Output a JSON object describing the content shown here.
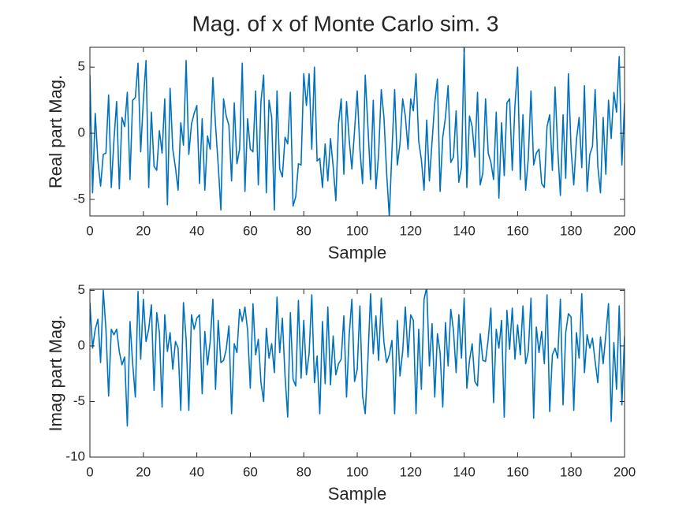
{
  "title": "Mag. of x of Monte Carlo sim. 3",
  "chart_data": [
    {
      "type": "line",
      "xlabel": "Sample",
      "ylabel": "Real part Mag.",
      "xlim": [
        0,
        200
      ],
      "xticks": [
        0,
        20,
        40,
        60,
        80,
        100,
        120,
        140,
        160,
        180,
        200
      ],
      "ylim": [
        -6.25,
        6.5
      ],
      "yticks": [
        -5,
        0,
        5
      ],
      "series": [
        {
          "color": "#0072BD",
          "values": [
            4.4,
            -4.5,
            1.5,
            -2.1,
            -4.0,
            -1.6,
            -1.5,
            2.9,
            -4.1,
            -0.5,
            2.4,
            -4.2,
            1.2,
            0.5,
            3.1,
            -3.5,
            2.5,
            2.7,
            5.3,
            -1.4,
            2.5,
            5.5,
            -4.1,
            1.6,
            -2.5,
            -2.8,
            0.2,
            -1.5,
            2.6,
            -5.4,
            3.4,
            -1.2,
            -2.6,
            -4.3,
            0.8,
            -0.9,
            5.5,
            -1.6,
            0.7,
            1.5,
            2.1,
            -3.8,
            1.1,
            -4.3,
            -0.2,
            -1.2,
            4.2,
            0.6,
            -2.4,
            -5.8,
            2.6,
            1.3,
            0.6,
            -3.6,
            2.3,
            -2.3,
            -1.2,
            5.3,
            -4.4,
            1.1,
            -1.2,
            -1.4,
            3.2,
            -3.9,
            2.4,
            4.4,
            -4.5,
            2.5,
            1.2,
            -5.8,
            3.2,
            -2.7,
            -3.3,
            -0.3,
            -0.8,
            3.1,
            -5.5,
            -4.8,
            -2.3,
            -2.4,
            4.5,
            2.1,
            4.5,
            -1.2,
            5.0,
            -2.1,
            -1.9,
            -4.1,
            -0.8,
            -3.6,
            -0.4,
            -2.5,
            -5.1,
            0.7,
            2.6,
            -3.1,
            2.4,
            -0.5,
            -2.7,
            0.2,
            3.2,
            -1.2,
            -3.8,
            4.4,
            0.5,
            -3.5,
            2.5,
            -4.2,
            -1.6,
            3.3,
            1.2,
            -3.0,
            -6.3,
            -1.3,
            3.3,
            -2.4,
            -0.8,
            2.6,
            1.3,
            -1.2,
            2.6,
            1.7,
            4.5,
            -0.6,
            -2.0,
            -4.3,
            1.0,
            -3.6,
            -0.6,
            2.3,
            4.1,
            -4.4,
            -0.3,
            1.2,
            3.6,
            -2.2,
            -1.8,
            1.7,
            -3.7,
            -2.6,
            6.5,
            -4.1,
            1.3,
            0.5,
            -1.8,
            3.1,
            -3.9,
            -3.0,
            2.6,
            -1.5,
            -2.2,
            -3.5,
            1.6,
            -4.9,
            0.8,
            -3.2,
            2.3,
            2.6,
            -2.8,
            2.1,
            5.0,
            -3.5,
            1.4,
            -4.3,
            -1.9,
            3.2,
            -2.4,
            -1.5,
            -1.2,
            -3.8,
            -4.1,
            0.5,
            1.4,
            -2.8,
            3.5,
            -1.2,
            -4.7,
            1.4,
            -3.4,
            4.5,
            -1.2,
            -3.9,
            -0.5,
            1.2,
            -2.6,
            3.6,
            -4.4,
            -1.6,
            -1.0,
            3.3,
            -2.5,
            -4.5,
            1.2,
            -3.1,
            2.5,
            -0.4,
            3.1,
            1.6,
            5.8,
            -2.4,
            2.3
          ]
        }
      ]
    },
    {
      "type": "line",
      "xlabel": "Sample",
      "ylabel": "Imag part Mag.",
      "xlim": [
        0,
        200
      ],
      "xticks": [
        0,
        20,
        40,
        60,
        80,
        100,
        120,
        140,
        160,
        180,
        200
      ],
      "ylim": [
        -10,
        5.1
      ],
      "yticks": [
        -10,
        -5,
        0,
        5
      ],
      "series": [
        {
          "color": "#0072BD",
          "values": [
            3.9,
            -0.2,
            1.5,
            2.4,
            -1.5,
            5.0,
            1.5,
            -4.5,
            1.5,
            1.0,
            1.5,
            -0.5,
            -1.7,
            -1.0,
            -7.2,
            2.2,
            -1.6,
            -4.6,
            4.9,
            -1.2,
            4.2,
            0.4,
            1.5,
            3.7,
            -4.0,
            3.0,
            1.2,
            -5.5,
            2.8,
            -0.5,
            1.2,
            -2.1,
            0.4,
            -0.2,
            -5.8,
            3.9,
            0.6,
            -5.8,
            2.8,
            1.5,
            2.5,
            2.8,
            -4.3,
            1.3,
            -1.7,
            0.4,
            4.2,
            -3.9,
            2.3,
            -1.5,
            -1.3,
            -0.3,
            1.8,
            -6.1,
            0.2,
            -0.6,
            3.3,
            2.2,
            3.5,
            1.4,
            -3.8,
            3.8,
            -0.8,
            0.6,
            -3.3,
            -5.0,
            1.6,
            -1.1,
            0.2,
            -2.4,
            4.4,
            -0.6,
            2.5,
            -2.7,
            -6.4,
            3.0,
            -3.0,
            -3.6,
            4.1,
            -2.9,
            2.3,
            -2.6,
            -0.7,
            4.6,
            -3.3,
            -0.9,
            -6.1,
            2.2,
            -3.4,
            3.5,
            -3.5,
            0.9,
            -2.6,
            -1.6,
            -1.2,
            2.7,
            -4.6,
            1.0,
            4.2,
            -3.2,
            -2.1,
            3.6,
            -4.5,
            -6.1,
            -1.2,
            4.7,
            -0.7,
            2.7,
            -1.3,
            4.3,
            0.3,
            -1.5,
            -0.8,
            0.5,
            -6.1,
            2.3,
            -2.7,
            -0.5,
            3.5,
            -1.0,
            2.8,
            2.3,
            -6.1,
            1.5,
            -3.9,
            4.2,
            5.3,
            -1.8,
            2.0,
            -4.6,
            1.1,
            -0.6,
            -5.5,
            2.1,
            -1.8,
            3.3,
            1.4,
            -2.4,
            2.8,
            -1.1,
            4.3,
            -3.8,
            -1.3,
            0.2,
            -3.2,
            -3.6,
            1.1,
            -1.3,
            -1.4,
            0.6,
            3.4,
            -5.1,
            1.5,
            -0.2,
            2.3,
            -6.4,
            3.2,
            -0.3,
            3.4,
            -1.2,
            1.9,
            -0.8,
            3.6,
            -1.6,
            -0.5,
            4.3,
            -6.5,
            1.7,
            -0.6,
            1.3,
            -1.6,
            4.6,
            -5.9,
            -0.8,
            -0.2,
            -1.1,
            4.2,
            -5.3,
            1.2,
            2.9,
            2.6,
            -5.8,
            1.2,
            -1.1,
            4.7,
            -2.4,
            1.0,
            -0.2,
            0.7,
            -1.4,
            -3.3,
            0.8,
            -1.6,
            1.0,
            3.8,
            -6.8,
            0.3,
            -3.9,
            3.6,
            -5.3,
            0.9
          ]
        }
      ]
    }
  ]
}
